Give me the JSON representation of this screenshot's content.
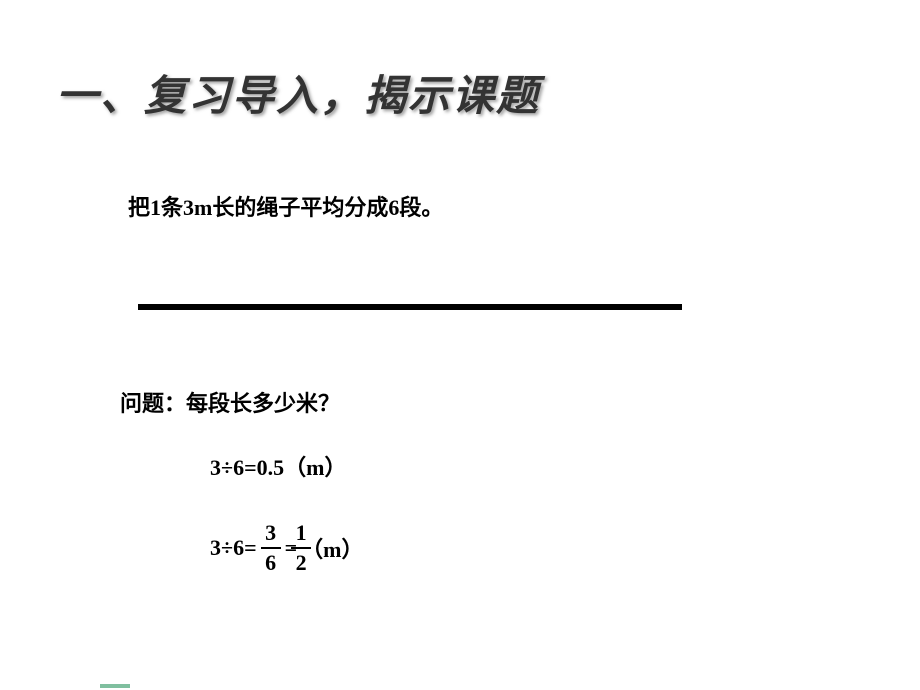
{
  "heading": "一、复习导入，揭示课题",
  "statement": "把1条3m长的绳子平均分成6段。",
  "question": "问题：每段长多少米？",
  "eq1": {
    "lhs": "3÷6",
    "eq": "=",
    "rhs": "0.5",
    "unit": "（m）"
  },
  "eq2": {
    "lhs": "3÷6",
    "eq": "=",
    "frac1": {
      "num": "3",
      "den": "6"
    },
    "eq2": "=",
    "frac2": {
      "num": "1",
      "den": "2"
    },
    "unit": "（m）"
  },
  "style": {
    "heading_color": "#333333",
    "heading_fontsize": 42,
    "body_fontsize": 22,
    "line_color": "#000000",
    "line_width": 544,
    "line_thickness": 6,
    "background": "#ffffff",
    "frac_bar_height": 2,
    "accent_color": "#7fbf9f"
  }
}
